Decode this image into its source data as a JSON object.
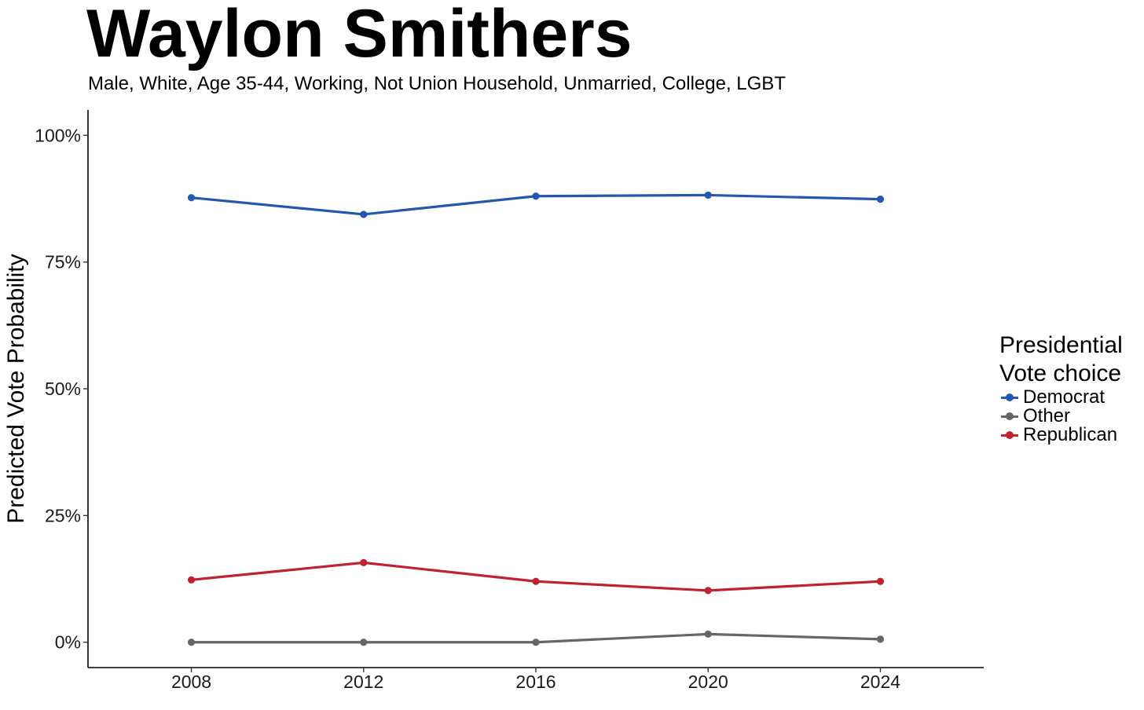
{
  "header": {
    "title": "Waylon Smithers",
    "subtitle": "Male, White, Age 35-44, Working, Not Union Household, Unmarried, College, LGBT"
  },
  "chart_data": {
    "type": "line",
    "x": [
      2008,
      2012,
      2016,
      2020,
      2024
    ],
    "x_tick_labels": [
      "2008",
      "2012",
      "2016",
      "2020",
      "2024"
    ],
    "xlim": [
      2005.6,
      2026.4
    ],
    "ylim": [
      -0.05,
      1.05
    ],
    "y_ticks": [
      0,
      0.25,
      0.5,
      0.75,
      1.0
    ],
    "y_tick_labels": [
      "0%",
      "25%",
      "50%",
      "75%",
      "100%"
    ],
    "ylabel": "Predicted Vote Probability",
    "xlabel": "",
    "grid": false,
    "legend_position": "right",
    "legend_title_line1": "Presidential",
    "legend_title_line2": "Vote choice",
    "series": [
      {
        "name": "Democrat",
        "color": "#2457b0",
        "values": [
          0.877,
          0.844,
          0.88,
          0.882,
          0.874
        ]
      },
      {
        "name": "Other",
        "color": "#666666",
        "values": [
          0.0,
          0.0,
          0.0,
          0.016,
          0.006
        ]
      },
      {
        "name": "Republican",
        "color": "#c0222f",
        "values": [
          0.123,
          0.157,
          0.12,
          0.102,
          0.12
        ]
      }
    ]
  }
}
